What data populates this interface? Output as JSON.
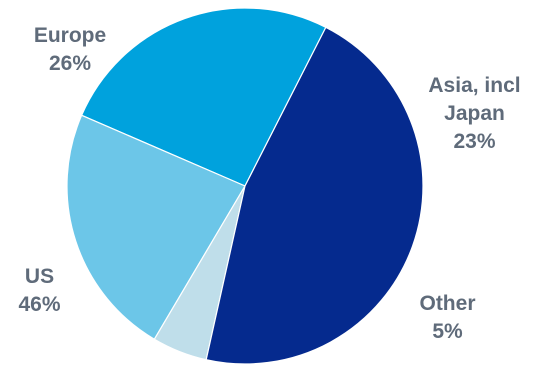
{
  "chart_data": {
    "type": "pie",
    "slices": [
      {
        "label": "Europe",
        "value": 26,
        "value_label": "26%",
        "color": "#00a2dd"
      },
      {
        "label": "Asia, incl Japan",
        "label_lines": [
          "Asia, incl",
          "Japan"
        ],
        "value": 23,
        "value_label": "23%",
        "color": "#6cc6e8"
      },
      {
        "label": "Other",
        "value": 5,
        "value_label": "5%",
        "color": "#bfdeea"
      },
      {
        "label": "US",
        "value": 46,
        "value_label": "46%",
        "color": "#052a8e"
      }
    ],
    "title": "",
    "legend": "none",
    "label_color": "#5f6b7a"
  }
}
